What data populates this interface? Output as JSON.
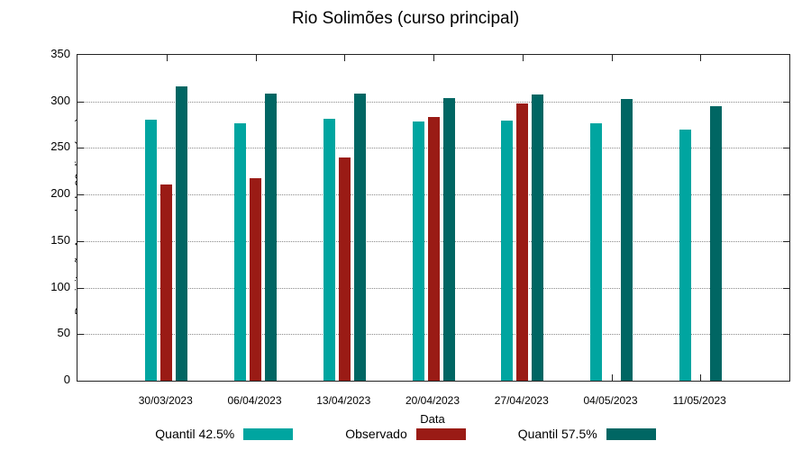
{
  "chart_data": {
    "type": "bar",
    "title": "Rio Solimões (curso principal)",
    "xlabel": "Data",
    "ylabel": "Precipitação Acumulada 30 dias (mm)",
    "ylim": [
      0,
      350
    ],
    "yticks": [
      0,
      50,
      100,
      150,
      200,
      250,
      300,
      350
    ],
    "grid": "horizontal-dotted",
    "legend_position": "bottom",
    "categories": [
      "30/03/2023",
      "06/04/2023",
      "13/04/2023",
      "20/04/2023",
      "27/04/2023",
      "04/05/2023",
      "11/05/2023"
    ],
    "series": [
      {
        "name": "Quantil 42.5%",
        "color": "#00A5A0",
        "values": [
          280,
          277,
          281,
          278,
          279,
          277,
          270
        ]
      },
      {
        "name": "Observado",
        "color": "#9A1B15",
        "values": [
          211,
          218,
          240,
          283,
          298,
          null,
          null
        ]
      },
      {
        "name": "Quantil 57.5%",
        "color": "#006663",
        "values": [
          316,
          308,
          308,
          304,
          307,
          303,
          295
        ]
      }
    ]
  }
}
